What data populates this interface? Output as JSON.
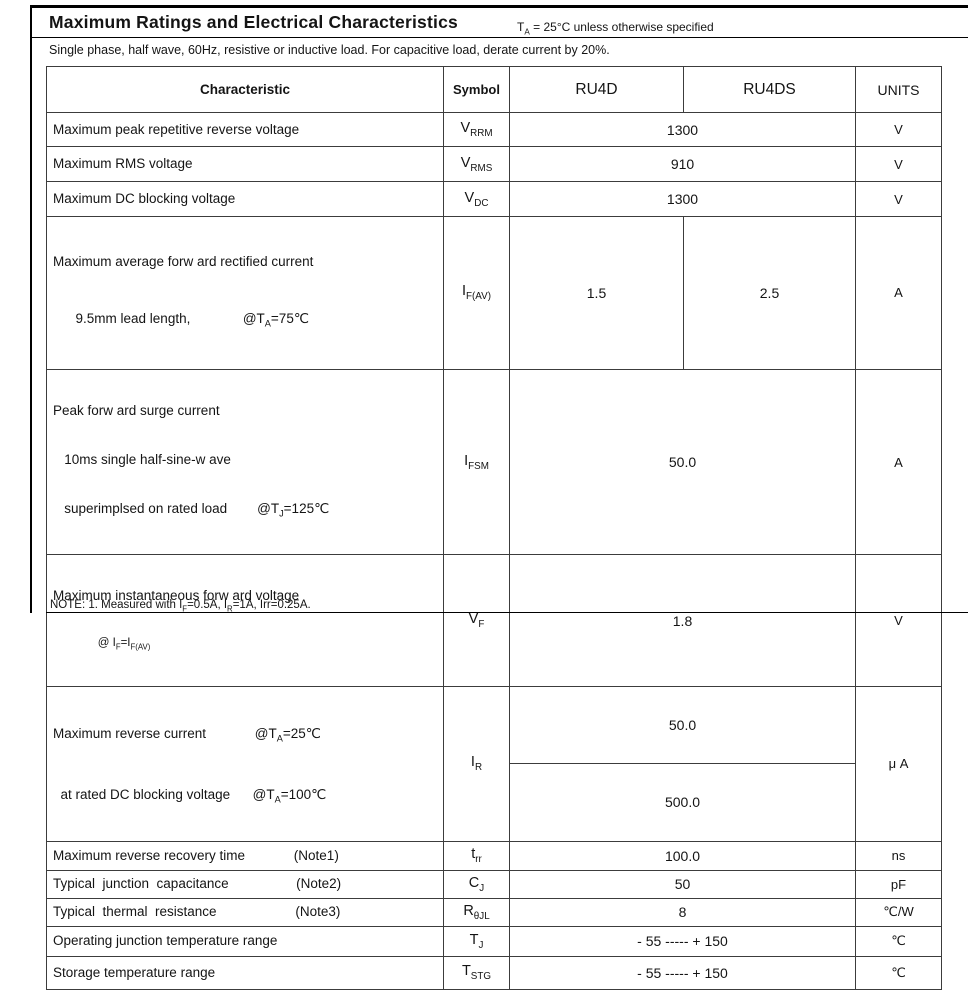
{
  "page": {
    "title": [
      {
        "t": "Maximum Ratings and Electrical Characteristics"
      }
    ],
    "title_note": [
      {
        "t": "T"
      },
      {
        "sub": "A"
      },
      {
        "t": " = 25°C unless otherwise specified"
      }
    ],
    "subtitle": [
      {
        "t": "Single phase, half wave, 60Hz, resistive or inductive load. "
      },
      {
        "t": "For capacitive load, derate current by 20%."
      }
    ],
    "footnote": [
      {
        "t": "NOTE: 1. Measured with I"
      },
      {
        "sub": "F"
      },
      {
        "t": "=0.5A, I"
      },
      {
        "sub": "R"
      },
      {
        "t": "=1A, Irr=0.25A."
      }
    ]
  },
  "table": {
    "header": {
      "characteristic": "Characteristic",
      "symbol": "Symbol",
      "model1": "RU4D",
      "model2": "RU4DS",
      "units": "UNITS"
    },
    "rows": [
      {
        "char": [
          [
            {
              "t": "Maximum peak repetitive reverse voltage"
            }
          ]
        ],
        "symbol": [
          {
            "t": "V"
          },
          {
            "sub": "RRM"
          }
        ],
        "value": "1300",
        "unit": [
          {
            "t": "V"
          }
        ]
      },
      {
        "char": [
          [
            {
              "t": "Maximum RMS voltage"
            }
          ]
        ],
        "symbol": [
          {
            "t": "V"
          },
          {
            "sub": "RMS"
          }
        ],
        "value": "910",
        "unit": [
          {
            "t": "V"
          }
        ]
      },
      {
        "char": [
          [
            {
              "t": "Maximum DC blocking voltage"
            }
          ]
        ],
        "symbol": [
          {
            "t": "V"
          },
          {
            "sub": "DC"
          }
        ],
        "value": "1300",
        "unit": [
          {
            "t": "V"
          }
        ]
      },
      {
        "char": [
          [
            {
              "t": "Maximum average forw ard rectified current"
            }
          ],
          [
            {
              "t": "      9.5mm lead length,              @T"
            },
            {
              "sub": "A"
            },
            {
              "t": "=75℃"
            }
          ]
        ],
        "symbol": [
          {
            "t": "I"
          },
          {
            "sub": "F(AV)"
          }
        ],
        "values": [
          "1.5",
          "2.5"
        ],
        "unit": [
          {
            "t": "A"
          }
        ]
      },
      {
        "char": [
          [
            {
              "t": "Peak forw ard surge current"
            }
          ],
          [
            {
              "t": "   10ms single half-sine-w ave"
            }
          ],
          [
            {
              "t": "   superimplsed on rated load        @T"
            },
            {
              "sub": "J"
            },
            {
              "t": "=125℃"
            }
          ]
        ],
        "symbol": [
          {
            "t": "I"
          },
          {
            "sub": "FSM"
          }
        ],
        "value": "50.0",
        "unit": [
          {
            "t": "A"
          }
        ]
      },
      {
        "char": [
          [
            {
              "t": "Maximum instantaneous forw ard voltage"
            }
          ],
          [
            {
              "t": "              @ I"
            },
            {
              "sub": "F"
            },
            {
              "t": "=I"
            },
            {
              "sub": "F(AV)"
            }
          ]
        ],
        "symbol": [
          {
            "t": "V"
          },
          {
            "sub": "F"
          }
        ],
        "value": "1.8",
        "unit": [
          {
            "t": "V"
          }
        ]
      },
      {
        "char": [
          [
            {
              "t": "Maximum reverse current             @T"
            },
            {
              "sub": "A"
            },
            {
              "t": "=25℃"
            }
          ],
          [
            {
              "t": "  at rated DC blocking voltage      @T"
            },
            {
              "sub": "A"
            },
            {
              "t": "=100℃"
            }
          ]
        ],
        "symbol": [
          {
            "t": "I"
          },
          {
            "sub": "R"
          }
        ],
        "values": [
          "50.0",
          "500.0"
        ],
        "unit": [
          {
            "t": "μ A"
          }
        ]
      },
      {
        "char": [
          [
            {
              "t": "Maximum reverse recovery time             (Note1)"
            }
          ]
        ],
        "symbol": [
          {
            "t": "t"
          },
          {
            "sub": "rr"
          }
        ],
        "value": "100.0",
        "unit": [
          {
            "t": "ns"
          }
        ]
      },
      {
        "char": [
          [
            {
              "t": "Typical  junction  capacitance                  (Note2)"
            }
          ]
        ],
        "symbol": [
          {
            "t": "C"
          },
          {
            "sub": "J"
          }
        ],
        "value": "50",
        "unit": [
          {
            "t": "pF"
          }
        ]
      },
      {
        "char": [
          [
            {
              "t": "Typical  thermal  resistance                     (Note3)"
            }
          ]
        ],
        "symbol": [
          {
            "t": "R"
          },
          {
            "sub": "θJL"
          }
        ],
        "value": "8",
        "unit": [
          {
            "t": "℃/W"
          }
        ]
      },
      {
        "char": [
          [
            {
              "t": "Operating junction temperature range"
            }
          ]
        ],
        "symbol": [
          {
            "t": "T"
          },
          {
            "sub": "J"
          }
        ],
        "value": "- 55 ----- + 150",
        "unit": [
          {
            "t": "℃"
          }
        ]
      },
      {
        "char": [
          [
            {
              "t": "Storage temperature range"
            }
          ]
        ],
        "symbol": [
          {
            "t": "T"
          },
          {
            "sub": "STG"
          }
        ],
        "value": "- 55 ----- + 150",
        "unit": [
          {
            "t": "℃"
          }
        ]
      }
    ]
  }
}
